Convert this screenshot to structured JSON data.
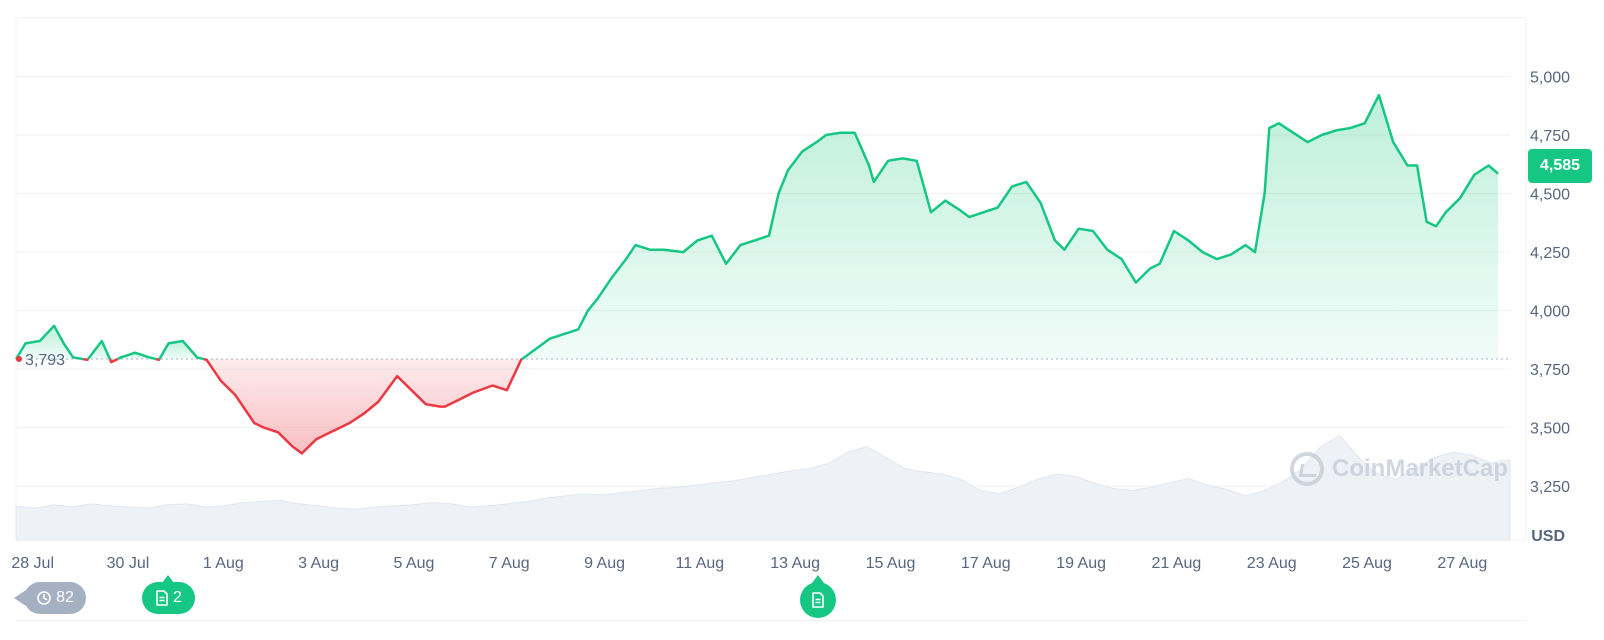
{
  "chart_data": {
    "type": "line",
    "currency": "USD",
    "y_ticks": [
      "5,000",
      "4,750",
      "4,500",
      "4,250",
      "4,000",
      "3,750",
      "3,500",
      "3,250"
    ],
    "y_tick_values": [
      5000,
      4750,
      4500,
      4250,
      4000,
      3750,
      3500,
      3250
    ],
    "ylim": [
      3020,
      5250
    ],
    "x_ticks": [
      "28 Jul",
      "30 Jul",
      "1 Aug",
      "3 Aug",
      "5 Aug",
      "7 Aug",
      "9 Aug",
      "11 Aug",
      "13 Aug",
      "15 Aug",
      "17 Aug",
      "19 Aug",
      "21 Aug",
      "23 Aug",
      "25 Aug",
      "27 Aug"
    ],
    "x_tick_values": [
      0.35,
      2.35,
      4.35,
      6.35,
      8.35,
      10.35,
      12.35,
      14.35,
      16.35,
      18.35,
      20.35,
      22.35,
      24.35,
      26.35,
      28.35,
      30.35
    ],
    "xlim": [
      0,
      31.35
    ],
    "baseline": 3793,
    "baseline_label": "3,793",
    "current_price": 4585,
    "current_price_label": "4,585",
    "colors": {
      "up": "#16c784",
      "down": "#ea3943",
      "axis_text": "#58667e",
      "grid": "#eff2f5"
    },
    "series": [
      {
        "name": "Price",
        "x": [
          0.0,
          0.2,
          0.5,
          0.8,
          1.0,
          1.2,
          1.5,
          1.8,
          2.0,
          2.2,
          2.5,
          2.8,
          3.0,
          3.2,
          3.5,
          3.8,
          4.0,
          4.3,
          4.6,
          5.0,
          5.2,
          5.5,
          5.8,
          6.0,
          6.3,
          6.6,
          6.8,
          7.0,
          7.3,
          7.6,
          8.0,
          8.3,
          8.6,
          8.9,
          9.0,
          9.3,
          9.6,
          10.0,
          10.3,
          10.6,
          10.8,
          11.0,
          11.2,
          11.5,
          11.8,
          12.0,
          12.2,
          12.5,
          12.8,
          13.0,
          13.3,
          13.6,
          14.0,
          14.3,
          14.6,
          14.9,
          15.2,
          15.5,
          15.8,
          16.0,
          16.2,
          16.5,
          16.8,
          17.0,
          17.3,
          17.6,
          17.9,
          18.0,
          18.3,
          18.6,
          18.9,
          19.2,
          19.5,
          19.8,
          20.0,
          20.3,
          20.6,
          20.9,
          21.2,
          21.5,
          21.8,
          22.0,
          22.3,
          22.6,
          22.9,
          23.2,
          23.5,
          23.8,
          24.0,
          24.3,
          24.6,
          24.9,
          25.2,
          25.5,
          25.8,
          26.0,
          26.2,
          26.3,
          26.5,
          26.8,
          27.1,
          27.4,
          27.7,
          28.0,
          28.3,
          28.6,
          28.9,
          29.2,
          29.4,
          29.6,
          29.8,
          30.0,
          30.3,
          30.6,
          30.9,
          31.1
        ],
        "y": [
          3793,
          3860,
          3870,
          3935,
          3860,
          3800,
          3790,
          3870,
          3780,
          3800,
          3820,
          3800,
          3790,
          3860,
          3870,
          3800,
          3790,
          3700,
          3640,
          3520,
          3500,
          3480,
          3420,
          3390,
          3450,
          3480,
          3500,
          3520,
          3560,
          3610,
          3720,
          3660,
          3600,
          3590,
          3590,
          3620,
          3650,
          3680,
          3660,
          3790,
          3820,
          3850,
          3880,
          3900,
          3920,
          4000,
          4050,
          4140,
          4220,
          4280,
          4260,
          4260,
          4250,
          4300,
          4320,
          4200,
          4280,
          4300,
          4320,
          4500,
          4600,
          4680,
          4720,
          4750,
          4760,
          4760,
          4620,
          4550,
          4640,
          4650,
          4640,
          4420,
          4470,
          4430,
          4400,
          4420,
          4440,
          4530,
          4550,
          4460,
          4300,
          4260,
          4350,
          4340,
          4260,
          4220,
          4120,
          4180,
          4200,
          4340,
          4300,
          4250,
          4220,
          4240,
          4280,
          4250,
          4500,
          4780,
          4800,
          4760,
          4720,
          4750,
          4770,
          4780,
          4800,
          4920,
          4720,
          4620,
          4620,
          4380,
          4360,
          4420,
          4480,
          4580,
          4620,
          4585
        ]
      }
    ],
    "volume_profile": [
      62,
      58,
      64,
      60,
      66,
      62,
      60,
      58,
      64,
      66,
      60,
      62,
      68,
      70,
      72,
      66,
      62,
      58,
      56,
      60,
      62,
      64,
      68,
      66,
      60,
      62,
      66,
      70,
      76,
      80,
      84,
      82,
      86,
      90,
      94,
      96,
      100,
      104,
      108,
      114,
      120,
      126,
      130,
      140,
      160,
      170,
      150,
      130,
      124,
      120,
      110,
      90,
      84,
      96,
      110,
      120,
      116,
      104,
      94,
      90,
      96,
      104,
      112,
      100,
      92,
      80,
      90,
      106,
      130,
      170,
      190,
      150,
      120,
      110,
      130,
      150,
      160,
      154,
      140,
      146
    ]
  },
  "legend": {
    "watermark": "CoinMarketCap"
  },
  "events": {
    "history_count": "82",
    "news_count": "2"
  }
}
